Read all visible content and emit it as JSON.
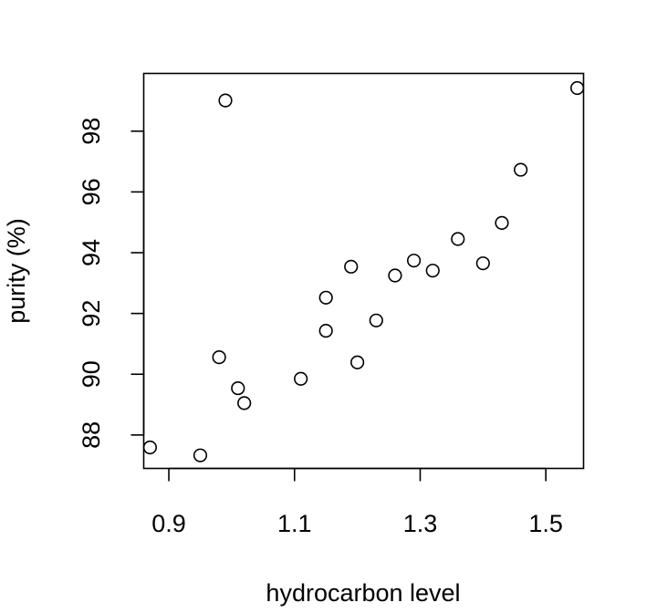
{
  "chart_data": {
    "type": "scatter",
    "xlabel": "hydrocarbon level",
    "ylabel": "purity (%)",
    "xlim": [
      0.86,
      1.56
    ],
    "ylim": [
      86.9,
      99.9
    ],
    "xticks": [
      0.9,
      1.1,
      1.3,
      1.5
    ],
    "xtick_labels": [
      "0.9",
      "1.1",
      "1.3",
      "1.5"
    ],
    "yticks": [
      88,
      90,
      92,
      94,
      96,
      98
    ],
    "ytick_labels": [
      "88",
      "90",
      "92",
      "94",
      "96",
      "98"
    ],
    "grid": false,
    "marker": "open-circle",
    "points": [
      {
        "x": 0.99,
        "y": 99.01
      },
      {
        "x": 1.02,
        "y": 89.05
      },
      {
        "x": 1.15,
        "y": 91.43
      },
      {
        "x": 1.29,
        "y": 93.74
      },
      {
        "x": 1.46,
        "y": 96.73
      },
      {
        "x": 1.36,
        "y": 94.45
      },
      {
        "x": 0.87,
        "y": 87.59
      },
      {
        "x": 1.23,
        "y": 91.77
      },
      {
        "x": 1.55,
        "y": 99.42
      },
      {
        "x": 1.4,
        "y": 93.65
      },
      {
        "x": 1.19,
        "y": 93.54
      },
      {
        "x": 1.15,
        "y": 92.52
      },
      {
        "x": 0.98,
        "y": 90.56
      },
      {
        "x": 1.01,
        "y": 89.54
      },
      {
        "x": 1.11,
        "y": 89.85
      },
      {
        "x": 1.2,
        "y": 90.39
      },
      {
        "x": 1.26,
        "y": 93.25
      },
      {
        "x": 1.32,
        "y": 93.41
      },
      {
        "x": 1.43,
        "y": 94.98
      },
      {
        "x": 0.95,
        "y": 87.33
      }
    ]
  }
}
